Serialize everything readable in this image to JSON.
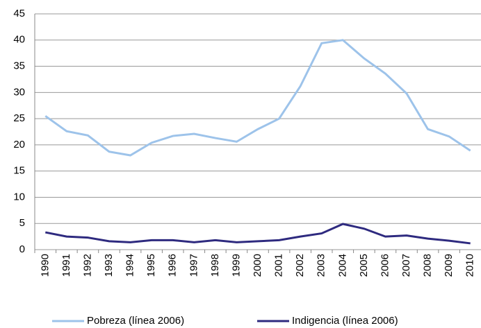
{
  "chart_data": {
    "type": "line",
    "categories": [
      "1990",
      "1991",
      "1992",
      "1993",
      "1994",
      "1995",
      "1996",
      "1997",
      "1998",
      "1999",
      "2000",
      "2001",
      "2002",
      "2003",
      "2004",
      "2005",
      "2006",
      "2007",
      "2008",
      "2009",
      "2010"
    ],
    "series": [
      {
        "name": "Pobreza (línea 2006)",
        "color": "#9dc3ea",
        "values": [
          25.5,
          22.6,
          21.8,
          18.7,
          18.0,
          20.4,
          21.7,
          22.1,
          21.3,
          20.6,
          23.0,
          25.0,
          31.2,
          39.4,
          40.0,
          36.5,
          33.6,
          29.8,
          23.0,
          21.6,
          18.9
        ]
      },
      {
        "name": "Indigencia (línea 2006)",
        "color": "#2e2a7f",
        "values": [
          3.3,
          2.5,
          2.3,
          1.6,
          1.4,
          1.8,
          1.8,
          1.4,
          1.8,
          1.4,
          1.6,
          1.8,
          2.5,
          3.1,
          4.9,
          4.0,
          2.5,
          2.7,
          2.1,
          1.7,
          1.2
        ]
      }
    ],
    "ylim": [
      0,
      45
    ],
    "yticks": [
      0,
      5,
      10,
      15,
      20,
      25,
      30,
      35,
      40,
      45
    ],
    "grid": true,
    "legend": "bottom"
  }
}
